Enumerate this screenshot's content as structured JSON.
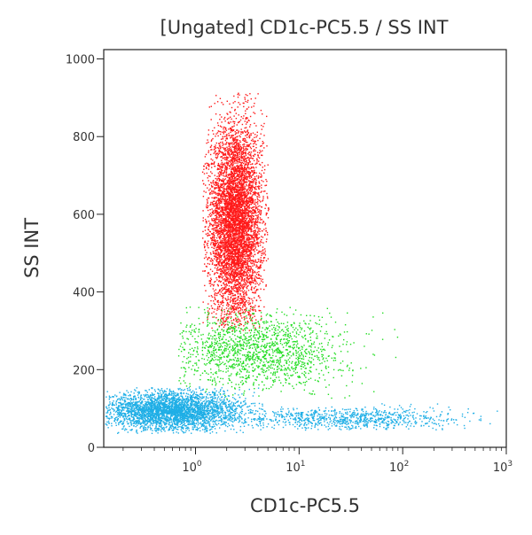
{
  "chart_data": {
    "type": "scatter",
    "title": "[Ungated] CD1c-PC5.5 / SS INT",
    "xlabel": "CD1c-PC5.5",
    "ylabel": "SS INT",
    "xscale": "log",
    "xlim": [
      0.13,
      1000
    ],
    "ylim": [
      0,
      1024
    ],
    "x_ticks": [
      {
        "value": 1,
        "base": "10",
        "exp": "0"
      },
      {
        "value": 10,
        "base": "10",
        "exp": "1"
      },
      {
        "value": 100,
        "base": "10",
        "exp": "2"
      },
      {
        "value": 1000,
        "base": "10",
        "exp": "3"
      }
    ],
    "y_ticks": [
      0,
      200,
      400,
      600,
      800,
      1000
    ],
    "grid": false,
    "populations": [
      {
        "color": "#ff1a1a",
        "center_x": 2.4,
        "center_y": 580,
        "x_range": [
          1.3,
          4.5
        ],
        "y_range": [
          340,
          880
        ],
        "count": 6000
      },
      {
        "color": "#22dd22",
        "center_x": 4.0,
        "center_y": 250,
        "x_range": [
          1.0,
          60
        ],
        "y_range": [
          140,
          350
        ],
        "count": 1600
      },
      {
        "color": "#1eaee6",
        "center_x": 0.6,
        "center_y": 95,
        "x_range": [
          0.13,
          3.5
        ],
        "y_range": [
          45,
          150
        ],
        "count": 3500
      },
      {
        "color": "#1eaee6",
        "center_x": 30,
        "center_y": 75,
        "x_range": [
          3,
          500
        ],
        "y_range": [
          50,
          110
        ],
        "count": 900
      }
    ]
  }
}
